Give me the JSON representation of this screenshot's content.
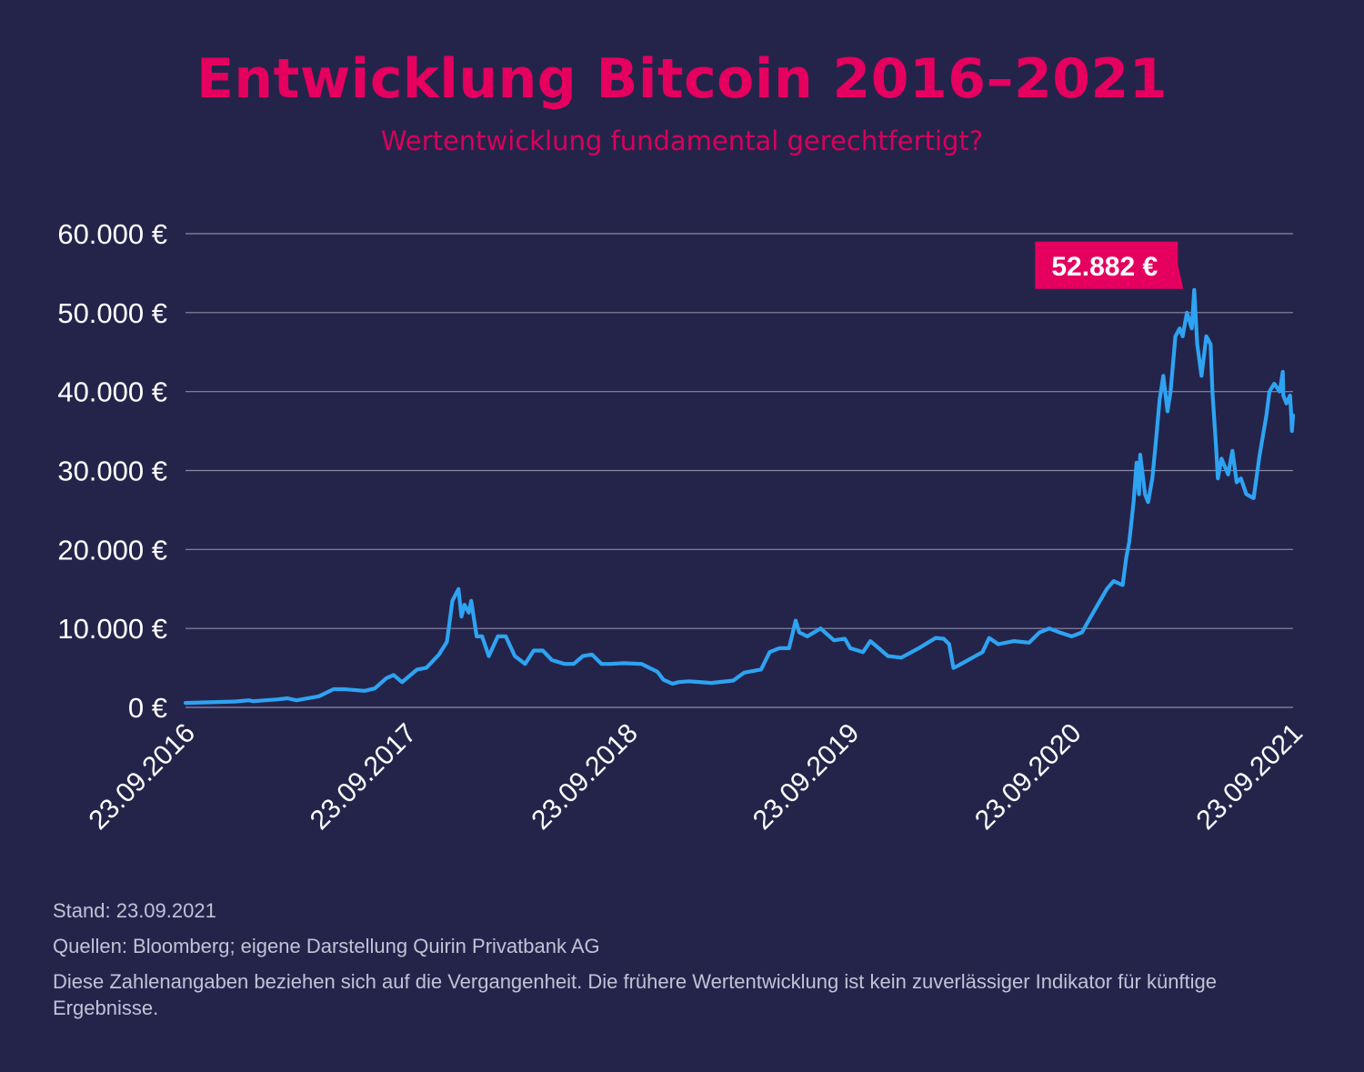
{
  "title": "Entwicklung Bitcoin 2016–2021",
  "subtitle": "Wertentwicklung fundamental gerechtfertigt?",
  "footer": {
    "stand": "Stand: 23.09.2021",
    "quellen": "Quellen: Bloomberg; eigene Darstellung Quirin Privatbank AG",
    "disclaimer": "Diese Zahlenangaben beziehen sich auf die Vergangenheit. Die frühere Wertentwicklung ist kein zuverlässiger Indikator für künftige Ergebnisse."
  },
  "colors": {
    "background": "#24244b",
    "accent": "#e5005f",
    "line": "#2ea3f2"
  },
  "chart_data": {
    "type": "line",
    "title": "Entwicklung Bitcoin 2016–2021",
    "ylim": [
      0,
      60000
    ],
    "xlim": [
      "2016-09-23",
      "2021-09-23"
    ],
    "grid": true,
    "yticks": [
      0,
      10000,
      20000,
      30000,
      40000,
      50000,
      60000
    ],
    "ytick_labels": [
      "0 €",
      "10.000 €",
      "20.000 €",
      "30.000 €",
      "40.000 €",
      "50.000 €",
      "60.000 €"
    ],
    "xticks": [
      "2016-09-23",
      "2017-09-23",
      "2018-09-23",
      "2019-09-23",
      "2020-09-23",
      "2021-09-23"
    ],
    "xtick_labels": [
      "23.09.2016",
      "23.09.2017",
      "23.09.2018",
      "23.09.2019",
      "23.09.2020",
      "23.09.2021"
    ],
    "annotation": {
      "label": "52.882 €",
      "x": "2021-04-13",
      "y": 52882
    },
    "series": [
      {
        "x": [
          "2016-09-23",
          "2016-11-01",
          "2016-12-15",
          "2017-01-05",
          "2017-01-12",
          "2017-02-20",
          "2017-03-10",
          "2017-03-25",
          "2017-05-01",
          "2017-05-25",
          "2017-06-12",
          "2017-07-15",
          "2017-08-01",
          "2017-08-20",
          "2017-09-01",
          "2017-09-15",
          "2017-10-10",
          "2017-10-25",
          "2017-11-15",
          "2017-11-28",
          "2017-12-07",
          "2017-12-17",
          "2017-12-22",
          "2017-12-27",
          "2018-01-03",
          "2018-01-07",
          "2018-01-16",
          "2018-01-25",
          "2018-02-05",
          "2018-02-20",
          "2018-03-05",
          "2018-03-20",
          "2018-04-06",
          "2018-04-20",
          "2018-05-05",
          "2018-05-20",
          "2018-06-10",
          "2018-06-25",
          "2018-07-10",
          "2018-07-25",
          "2018-08-10",
          "2018-08-25",
          "2018-09-15",
          "2018-10-15",
          "2018-11-10",
          "2018-11-20",
          "2018-12-05",
          "2018-12-15",
          "2019-01-01",
          "2019-02-07",
          "2019-03-15",
          "2019-04-02",
          "2019-04-30",
          "2019-05-14",
          "2019-05-30",
          "2019-06-15",
          "2019-06-26",
          "2019-07-02",
          "2019-07-15",
          "2019-08-06",
          "2019-08-28",
          "2019-09-15",
          "2019-09-24",
          "2019-10-15",
          "2019-10-27",
          "2019-11-10",
          "2019-11-25",
          "2019-12-17",
          "2020-01-15",
          "2020-02-12",
          "2020-02-25",
          "2020-03-05",
          "2020-03-12",
          "2020-03-20",
          "2020-04-10",
          "2020-04-29",
          "2020-05-10",
          "2020-05-25",
          "2020-06-20",
          "2020-07-15",
          "2020-08-01",
          "2020-08-17",
          "2020-09-03",
          "2020-09-23",
          "2020-10-10",
          "2020-10-21",
          "2020-11-05",
          "2020-11-20",
          "2020-12-01",
          "2020-12-16",
          "2020-12-22",
          "2020-12-27",
          "2021-01-03",
          "2021-01-08",
          "2021-01-12",
          "2021-01-14",
          "2021-01-22",
          "2021-01-27",
          "2021-02-03",
          "2021-02-08",
          "2021-02-15",
          "2021-02-21",
          "2021-02-28",
          "2021-03-05",
          "2021-03-13",
          "2021-03-20",
          "2021-03-25",
          "2021-04-01",
          "2021-04-09",
          "2021-04-13",
          "2021-04-18",
          "2021-04-25",
          "2021-05-03",
          "2021-05-10",
          "2021-05-13",
          "2021-05-19",
          "2021-05-22",
          "2021-05-28",
          "2021-06-08",
          "2021-06-15",
          "2021-06-22",
          "2021-06-29",
          "2021-07-08",
          "2021-07-20",
          "2021-07-30",
          "2021-08-10",
          "2021-08-15",
          "2021-08-23",
          "2021-09-01",
          "2021-09-06",
          "2021-09-07",
          "2021-09-12",
          "2021-09-18",
          "2021-09-20",
          "2021-09-21",
          "2021-09-23"
        ],
        "values": [
          560,
          650,
          750,
          900,
          780,
          1000,
          1150,
          900,
          1400,
          2300,
          2300,
          2100,
          2400,
          3700,
          4100,
          3200,
          4800,
          5000,
          6700,
          8300,
          13500,
          15000,
          11500,
          13000,
          12000,
          13500,
          9000,
          9000,
          6500,
          9000,
          9000,
          6500,
          5500,
          7200,
          7200,
          6000,
          5500,
          5500,
          6500,
          6700,
          5500,
          5500,
          5600,
          5500,
          4500,
          3500,
          3000,
          3200,
          3300,
          3100,
          3400,
          4400,
          4800,
          7000,
          7500,
          7500,
          11000,
          9500,
          9000,
          10000,
          8500,
          8700,
          7500,
          7000,
          8400,
          7500,
          6500,
          6300,
          7500,
          8800,
          8700,
          8000,
          5000,
          5300,
          6200,
          7000,
          8800,
          8000,
          8400,
          8200,
          9500,
          10000,
          9500,
          9000,
          9500,
          11000,
          13000,
          15000,
          16000,
          15500,
          19000,
          21000,
          26000,
          31000,
          27000,
          32000,
          27000,
          26000,
          29000,
          33000,
          39000,
          42000,
          37500,
          40000,
          47000,
          48000,
          47000,
          50000,
          48000,
          52882,
          46000,
          42000,
          47000,
          46000,
          40000,
          33000,
          29000,
          31500,
          29500,
          32500,
          28500,
          29000,
          27000,
          26500,
          32000,
          37000,
          40000,
          41000,
          40000,
          42500,
          39500,
          38500,
          39500,
          37000,
          35000,
          37000
        ]
      }
    ]
  }
}
